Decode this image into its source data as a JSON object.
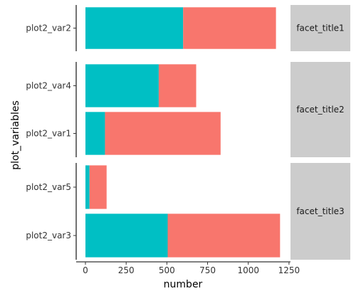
{
  "chart_data": {
    "type": "bar",
    "orientation": "horizontal",
    "stacked": true,
    "xlabel": "number",
    "ylabel": "plot_variables",
    "xlim": [
      0,
      1250
    ],
    "x_ticks": [
      0,
      250,
      500,
      750,
      1000,
      1250
    ],
    "grid": false,
    "legend": "none",
    "series_colors": [
      "#00BFC4",
      "#F8766D"
    ],
    "facets": [
      {
        "title": "facet_title1",
        "categories": [
          "plot2_var2"
        ],
        "series": [
          {
            "values": [
              600
            ]
          },
          {
            "values": [
              570
            ]
          }
        ]
      },
      {
        "title": "facet_title2",
        "categories": [
          "plot2_var4",
          "plot2_var1"
        ],
        "series": [
          {
            "values": [
              450,
              120
            ]
          },
          {
            "values": [
              230,
              710
            ]
          }
        ]
      },
      {
        "title": "facet_title3",
        "categories": [
          "plot2_var5",
          "plot2_var3"
        ],
        "series": [
          {
            "values": [
              25,
              505
            ]
          },
          {
            "values": [
              105,
              690
            ]
          }
        ]
      }
    ]
  }
}
